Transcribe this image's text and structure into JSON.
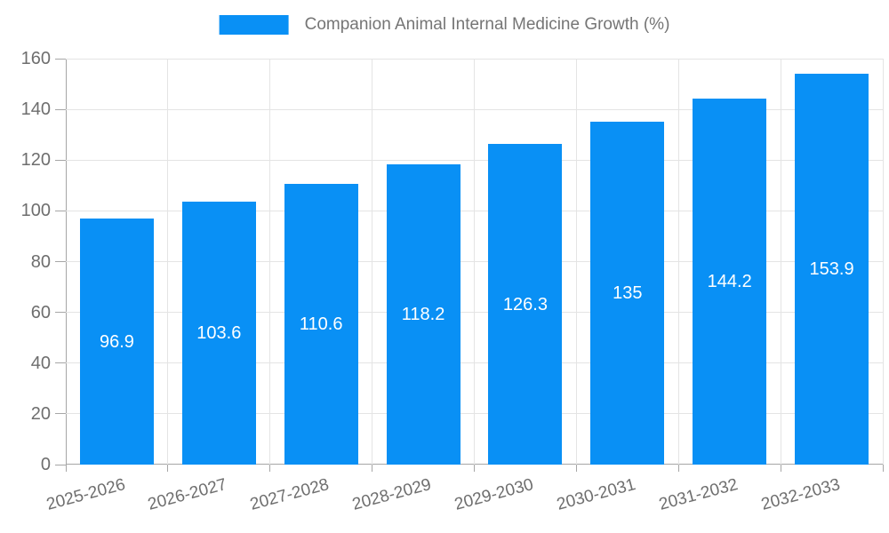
{
  "chart_data": {
    "type": "bar",
    "title": "Companion Animal Internal Medicine Growth (%)",
    "legend": {
      "label": "Companion Animal Internal Medicine Growth (%)",
      "position": "top-center"
    },
    "categories": [
      "2025-2026",
      "2026-2027",
      "2027-2028",
      "2028-2029",
      "2029-2030",
      "2030-2031",
      "2031-2032",
      "2032-2033"
    ],
    "series": [
      {
        "name": "Companion Animal Internal Medicine Growth (%)",
        "values": [
          96.9,
          103.6,
          110.6,
          118.2,
          126.3,
          135,
          144.2,
          153.9
        ]
      }
    ],
    "value_labels": [
      "96.9",
      "103.6",
      "110.6",
      "118.2",
      "126.3",
      "135",
      "144.2",
      "153.9"
    ],
    "xlabel": "",
    "ylabel": "",
    "ylim": [
      0,
      160
    ],
    "yticks": [
      0,
      20,
      40,
      60,
      80,
      100,
      120,
      140,
      160
    ],
    "grid": true,
    "x_tick_label_rotation_deg": -15,
    "colors": {
      "bar": "#0990F5",
      "value_label": "#ffffff",
      "axis": "#a6a6a6",
      "grid": "#e4e4e4",
      "tick_text": "#6e6e6e",
      "legend_text": "#757575",
      "background": "#ffffff"
    }
  }
}
